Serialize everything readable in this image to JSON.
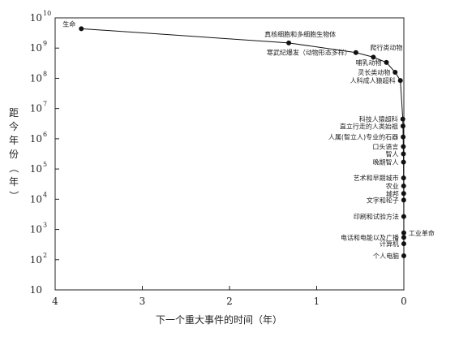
{
  "chart_data": {
    "type": "line",
    "xlabel": "下一个重大事件的时间（年）",
    "ylabel": "距今年份（年）",
    "xlim": [
      4,
      0
    ],
    "ylim": [
      1,
      10000000000.0
    ],
    "y_scale": "log",
    "x_ticks": [
      "4",
      "3",
      "2",
      "1",
      "0"
    ],
    "y_ticks": [
      {
        "base": "10",
        "exp": "10"
      },
      {
        "base": "10",
        "exp": "9"
      },
      {
        "base": "10",
        "exp": "8"
      },
      {
        "base": "10",
        "exp": "7"
      },
      {
        "base": "10",
        "exp": "6"
      },
      {
        "base": "10",
        "exp": "5"
      },
      {
        "base": "10",
        "exp": "4"
      },
      {
        "base": "10",
        "exp": "3"
      },
      {
        "base": "10",
        "exp": "2"
      },
      {
        "base": "10",
        "exp": ""
      }
    ],
    "points": [
      {
        "label": "生命",
        "x": 3.7,
        "y": 4000000000.0
      },
      {
        "label": "真核细胞和多细胞生物体",
        "x": 1.32,
        "y": 1200000000.0
      },
      {
        "label": "寒武纪爆发（动物形态多样）",
        "x": 0.55,
        "y": 530000000.0
      },
      {
        "label": "爬行类动物",
        "x": 0.35,
        "y": 360000000.0
      },
      {
        "label": "哺乳动物",
        "x": 0.2,
        "y": 230000000.0
      },
      {
        "label": "灵长类动物",
        "x": 0.1,
        "y": 100000000.0
      },
      {
        "label": "人科成人猿超科",
        "x": 0.04,
        "y": 50000000.0
      },
      {
        "label": "科技人猿超科",
        "x": 0.012,
        "y": 1900000.0
      },
      {
        "label": "直立行走的人类始祖",
        "x": 0.01,
        "y": 1050000.0
      },
      {
        "label": "人属(智立人)专业的石器",
        "x": 0.008,
        "y": 420000.0
      },
      {
        "label": "口头语言",
        "x": 0.006,
        "y": 185000.0
      },
      {
        "label": "智人",
        "x": 0.005,
        "y": 100000.0
      },
      {
        "label": "晚期智人",
        "x": 0.004,
        "y": 50000.0
      },
      {
        "label": "艺术和早期城市",
        "x": 0.003,
        "y": 13000.0
      },
      {
        "label": "农业",
        "x": 0.0025,
        "y": 6600.0
      },
      {
        "label": "城邦",
        "x": 0.002,
        "y": 3500.0
      },
      {
        "label": "文字和轮子",
        "x": 0.0015,
        "y": 2000.0
      },
      {
        "label": "印刷和试验方法",
        "x": 0.001,
        "y": 500
      },
      {
        "label": "工业革命",
        "x": 0.0008,
        "y": 125
      },
      {
        "label": "电话和电能以及广播",
        "x": 0.0005,
        "y": 85
      },
      {
        "label": "计算机",
        "x": 0.0003,
        "y": 50
      },
      {
        "label": "个人电脑",
        "x": 0.0002,
        "y": 18
      }
    ]
  }
}
